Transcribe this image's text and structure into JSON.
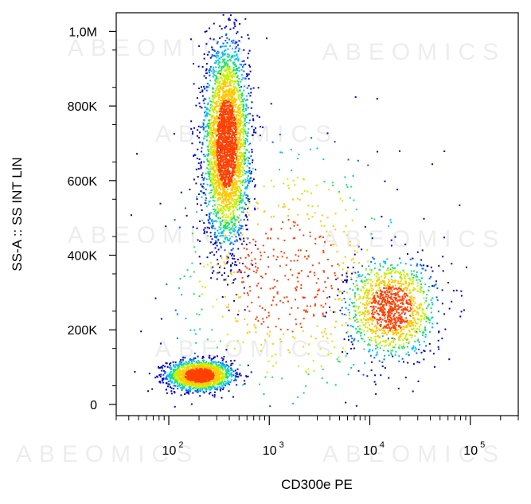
{
  "chart_data": {
    "type": "scatter",
    "plot_style": "flow-cytometry pseudocolor density dot plot",
    "xlabel": "CD300e PE",
    "ylabel": "SS-A :: SS INT LIN",
    "x_scale": "log",
    "y_scale": "linear",
    "xlim": [
      30,
      300000
    ],
    "ylim": [
      -30000,
      1050000
    ],
    "x_ticks": [
      {
        "value": 100,
        "base": "10",
        "exp": "2"
      },
      {
        "value": 1000,
        "base": "10",
        "exp": "3"
      },
      {
        "value": 10000,
        "base": "10",
        "exp": "4"
      },
      {
        "value": 100000,
        "base": "10",
        "exp": "5"
      }
    ],
    "y_ticks": [
      {
        "value": 0,
        "label": "0"
      },
      {
        "value": 200000,
        "label": "200K"
      },
      {
        "value": 400000,
        "label": "400K"
      },
      {
        "value": 600000,
        "label": "600K"
      },
      {
        "value": 800000,
        "label": "800K"
      },
      {
        "value": 1000000,
        "label": "1,0M"
      }
    ],
    "density_colors": [
      "#0000c8",
      "#0060ff",
      "#00c0ff",
      "#20e070",
      "#c8f000",
      "#ffc800",
      "#ff4000"
    ],
    "populations": [
      {
        "x_center": 200,
        "y_center": 80000,
        "x_log_spread": 0.16,
        "y_spread": 20000,
        "points": 1700
      },
      {
        "x_center": 370,
        "y_center": 700000,
        "x_log_spread": 0.11,
        "y_spread": 130000,
        "points": 3400
      },
      {
        "x_center": 16000,
        "y_center": 260000,
        "x_log_spread": 0.22,
        "y_spread": 65000,
        "points": 1300
      },
      {
        "x_center": 1500,
        "y_center": 350000,
        "x_log_spread": 0.55,
        "y_spread": 170000,
        "points": 650
      }
    ],
    "grid": false,
    "legend": "none"
  },
  "watermark": "ABEOMICS"
}
